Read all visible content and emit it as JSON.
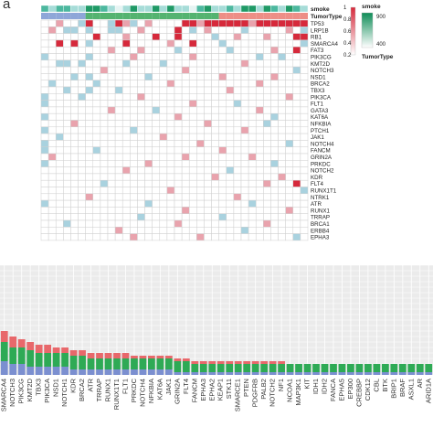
{
  "panel_label": "a",
  "chart_data": [
    {
      "type": "heatmap",
      "annotation_rows": [
        "smoke",
        "TumorType"
      ],
      "genes": [
        "TP53",
        "LRP1B",
        "RB1",
        "SMARCA4",
        "FAT3",
        "PIK3CG",
        "KMT2D",
        "NOTCH3",
        "NSD1",
        "BRCA2",
        "TBX3",
        "PIK3CA",
        "FLT1",
        "GATA3",
        "KAT6A",
        "NFKBIA",
        "PTCH1",
        "JAK1",
        "NOTCH4",
        "FANCM",
        "GRIN2A",
        "PRKDC",
        "NOTCH2",
        "KDR",
        "FLT4",
        "RUNX1T1",
        "NTRK1",
        "ATR",
        "RUNX1",
        "TRRAP",
        "BRCA1",
        "ERBB4",
        "EPHA3"
      ],
      "n_samples": 36,
      "cells_by_gene": [
        "000000000000000000000000000000000000",
        "000000000000000000000000000000000000",
        "000000000000000000000000000000000000",
        "000000000000000000000000000000000000",
        "000000000000000000000000000000000000",
        "000000000000000000000000000000000000",
        "000000000000000000000000000000000000",
        "000000000000000000000000000000000000",
        "000000000000000000000000000000000000",
        "000000000000000000000000000000000000",
        "000000000000000000000000000000000000",
        "000000000000000000000000000000000000",
        "000000000000000000000000000000000000",
        "000000000000000000000000000000000000",
        "000000000000000000000000000000000000",
        "000000000000000000000000000000000000",
        "000000000000000000000000000000000000",
        "000000000000000000000000000000000000",
        "000000000000000000000000000000000000",
        "000000000000000000000000000000000000",
        "000000000000000000000000000000000000",
        "000000000000000000000000000000000000",
        "000000000000000000000000000000000000",
        "000000000000000000000000000000000000",
        "000000000000000000000000000000000000",
        "000000000000000000000000000000000000",
        "000000000000000000000000000000000000",
        "000000000000000000000000000000000000",
        "000000000000000000000000000000000000",
        "000000000000000000000000000000000000",
        "000000000000000000000000000000000000",
        "000000000000000000000000000000000000",
        "000000000000000000000000000000000000"
      ],
      "cell_value_map": {
        "0": "none",
        "1": "light-blue",
        "2": "pink",
        "3": "red"
      },
      "cell_colors": {
        "none": "#ffffff",
        "light-blue": "#a9d2df",
        "pink": "#e9a3ad",
        "red": "#d6293b"
      },
      "grid_color": "#cfcfcf",
      "smoke_row": "000000000000000000000000000000000000",
      "smoke_colors": [
        "#a6dcd8",
        "#4cb89f",
        "#1f9a66",
        "#e6f4f3"
      ],
      "tumor_type_row": "000000000000000000000000000000000000",
      "tumor_type_colors": [
        "#8ea6d8",
        "#54b370",
        "#ed8e86"
      ],
      "legend": {
        "mutation_colorbar": {
          "ticks": [
            "1",
            "0.8",
            "0.6",
            "0.4",
            "0.2"
          ],
          "colors": [
            "#d6293b",
            "#ffffff"
          ]
        },
        "smoke": {
          "title": "smoke",
          "ticks": [
            "900",
            "400"
          ],
          "colors": [
            "#0e8d57",
            "#ffffff"
          ]
        },
        "tumor_type_title": "TumorType"
      }
    },
    {
      "type": "bar",
      "stacked": true,
      "categories": [
        "SMARCA4",
        "NOTCH3",
        "PIK3CG",
        "KMT2D",
        "TBX3",
        "PIK3CA",
        "NSD1",
        "NOTCH1",
        "KDR",
        "BRCA2",
        "ATR",
        "TRRAP",
        "RUNX1",
        "RUNX1T1",
        "FLT1",
        "PRKDC",
        "NOTCH4",
        "NFKBIA",
        "KAT6A",
        "JAK1",
        "GRIN2A",
        "FLT4",
        "FANCM",
        "EPHA3",
        "EPHA2",
        "KEAP1",
        "STK11",
        "SMARCE1",
        "PTEN",
        "PDGFRB",
        "PALB2",
        "NOTCH2",
        "NF1",
        "NCOA1",
        "MAP3K1",
        "KIT",
        "IDH1",
        "IDH2",
        "FANCA",
        "EPHA5",
        "EP300",
        "CREBBP",
        "CDK12",
        "CBL",
        "BTK",
        "BRIP1",
        "BRAF",
        "ASXL1",
        "AR",
        "ARID1A"
      ],
      "series": [
        {
          "name": "",
          "color": "#7b8fd0",
          "values": [
            5,
            4,
            4,
            3,
            3,
            3,
            3,
            3,
            2,
            2,
            2,
            2,
            2,
            2,
            2,
            2,
            2,
            2,
            2,
            2,
            1,
            1,
            1,
            1,
            1,
            1,
            1,
            1,
            1,
            1,
            1,
            1,
            1,
            1,
            1,
            1,
            1,
            1,
            1,
            1,
            1,
            1,
            1,
            1,
            1,
            1,
            1,
            1,
            1,
            1
          ]
        },
        {
          "name": "",
          "color": "#2eaa55",
          "values": [
            7,
            6,
            6,
            6,
            5,
            5,
            5,
            5,
            5,
            5,
            4,
            4,
            4,
            4,
            4,
            4,
            4,
            4,
            4,
            4,
            4,
            4,
            3,
            3,
            3,
            3,
            3,
            3,
            3,
            3,
            3,
            3,
            3,
            3,
            3,
            3,
            3,
            3,
            3,
            3,
            3,
            3,
            3,
            3,
            3,
            3,
            3,
            3,
            3,
            3
          ]
        },
        {
          "name": "",
          "color": "#e8686b",
          "values": [
            4,
            4,
            3,
            3,
            3,
            3,
            2,
            2,
            2,
            2,
            2,
            2,
            2,
            2,
            2,
            1,
            1,
            1,
            1,
            1,
            1,
            1,
            1,
            1,
            1,
            1,
            1,
            1,
            1,
            1,
            1,
            1,
            1,
            0,
            0,
            0,
            0,
            0,
            0,
            0,
            0,
            0,
            0,
            0,
            0,
            0,
            0,
            0,
            0,
            0
          ]
        }
      ],
      "ylim": [
        0,
        40
      ],
      "grid": true
    }
  ]
}
